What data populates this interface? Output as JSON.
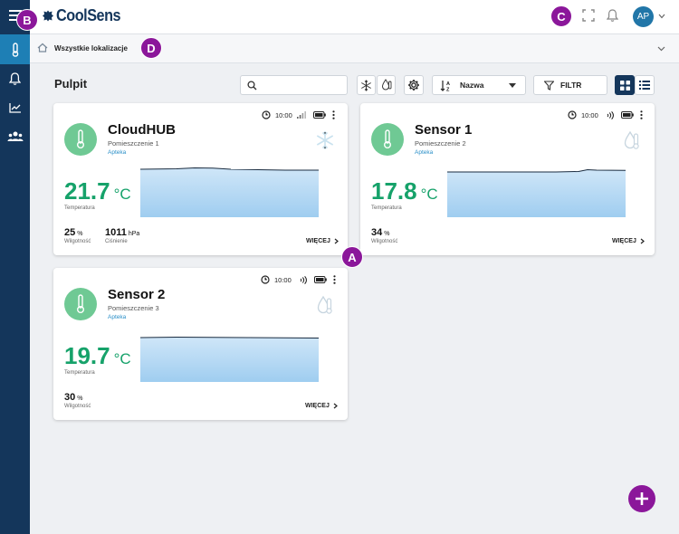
{
  "app": {
    "logo_text": "CoolSens",
    "avatar_initials": "AP"
  },
  "location": {
    "label": "Wszystkie lokalizacje"
  },
  "page": {
    "title": "Pulpit"
  },
  "search": {
    "value": "",
    "placeholder": ""
  },
  "sort": {
    "selected": "Nazwa"
  },
  "filter": {
    "label": "FILTR"
  },
  "badges": {
    "a": "A",
    "b": "B",
    "c": "C",
    "d": "D"
  },
  "colors": {
    "sidebar": "#14365b",
    "accent_green": "#16a26a",
    "accent_purple": "#8b179a",
    "link_blue": "#2a8fc8",
    "chart_fill": "#bfe0f7"
  },
  "cards": [
    {
      "name": "CloudHUB",
      "room": "Pomieszczenie 1",
      "tag": "Apteka",
      "time": "10:00",
      "temp": "21.7",
      "unit": "°C",
      "temp_label": "Temperatura",
      "humidity": "25",
      "humidity_unit": "%",
      "humidity_label": "Wilgotność",
      "pressure": "1011",
      "pressure_unit": "hPa",
      "pressure_label": "Ciśnienie",
      "more": "WIĘCEJ",
      "signal_icon": "signal-bars-icon",
      "device_icon": "snowflake-icon"
    },
    {
      "name": "Sensor 1",
      "room": "Pomieszczenie 2",
      "tag": "Apteka",
      "time": "10:00",
      "temp": "17.8",
      "unit": "°C",
      "temp_label": "Temperatura",
      "humidity": "34",
      "humidity_unit": "%",
      "humidity_label": "Wilgotność",
      "more": "WIĘCEJ",
      "signal_icon": "wireless-icon",
      "device_icon": "thermo-humidity-icon"
    },
    {
      "name": "Sensor 2",
      "room": "Pomieszczenie 3",
      "tag": "Apteka",
      "time": "10:00",
      "temp": "19.7",
      "unit": "°C",
      "temp_label": "Temperatura",
      "humidity": "30",
      "humidity_unit": "%",
      "humidity_label": "Wilgotność",
      "more": "WIĘCEJ",
      "signal_icon": "wireless-icon",
      "device_icon": "thermo-humidity-icon"
    }
  ]
}
